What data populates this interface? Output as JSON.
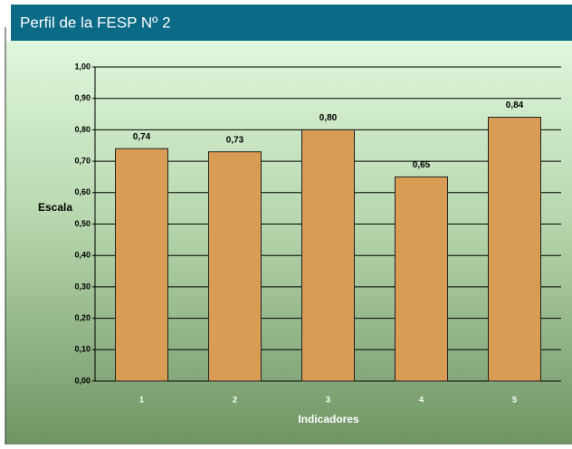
{
  "header": {
    "title": "Perfil de la FESP Nº 2"
  },
  "chart_data": {
    "type": "bar",
    "categories": [
      "1",
      "2",
      "3",
      "4",
      "5"
    ],
    "values": [
      0.74,
      0.73,
      0.8,
      0.65,
      0.84
    ],
    "value_labels": [
      "0,74",
      "0,73",
      "0,80",
      "0,65",
      "0,84"
    ],
    "color": "#d89c55",
    "ylim": [
      0,
      1
    ],
    "yticks": [
      {
        "value": 0,
        "label": "0,00"
      },
      {
        "value": 0.1,
        "label": "0,10"
      },
      {
        "value": 0.2,
        "label": "0,20"
      },
      {
        "value": 0.3,
        "label": "0,30"
      },
      {
        "value": 0.4,
        "label": "0,40"
      },
      {
        "value": 0.5,
        "label": "0,50"
      },
      {
        "value": 0.6,
        "label": "0,60"
      },
      {
        "value": 0.7,
        "label": "0,70"
      },
      {
        "value": 0.8,
        "label": "0,80"
      },
      {
        "value": 0.9,
        "label": "0,90"
      },
      {
        "value": 1,
        "label": "1,00"
      }
    ],
    "y_label": "Escala",
    "x_label": "Indicadores",
    "grid": true
  }
}
